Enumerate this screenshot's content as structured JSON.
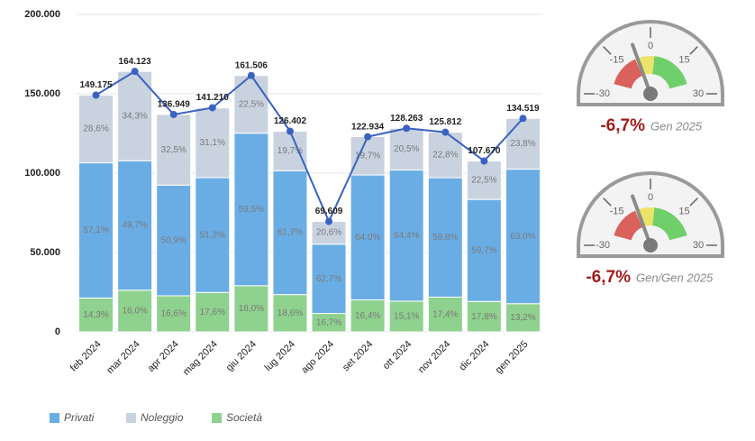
{
  "chart_data": {
    "type": "bar",
    "categories": [
      "feb 2024",
      "mar 2024",
      "apr 2024",
      "mag 2024",
      "giu 2024",
      "lug 2024",
      "ago 2024",
      "set 2024",
      "ott 2024",
      "nov 2024",
      "dic 2024",
      "gen 2025"
    ],
    "series": [
      {
        "name": "Privati",
        "color": "#6aade4",
        "values": [
          57.1,
          49.7,
          50.9,
          51.2,
          59.5,
          61.7,
          62.7,
          64.0,
          64.4,
          59.8,
          59.7,
          63.0
        ],
        "value_labels": [
          "57,1%",
          "49,7%",
          "50,9%",
          "51,2%",
          "59,5%",
          "61,7%",
          "62,7%",
          "64,0%",
          "64,4%",
          "59,8%",
          "59,7%",
          "63,0%"
        ]
      },
      {
        "name": "Noleggio",
        "color": "#c9d3e0",
        "values": [
          28.6,
          34.3,
          32.5,
          31.1,
          22.5,
          19.7,
          20.6,
          19.7,
          20.5,
          22.8,
          22.5,
          23.8
        ],
        "value_labels": [
          "28,6%",
          "34,3%",
          "32,5%",
          "31,1%",
          "22,5%",
          "19,7%",
          "20,6%",
          "19,7%",
          "20,5%",
          "22,8%",
          "22,5%",
          "23,8%"
        ]
      },
      {
        "name": "Società",
        "color": "#8fd18e",
        "values": [
          14.3,
          16.0,
          16.6,
          17.6,
          18.0,
          18.6,
          16.7,
          16.4,
          15.1,
          17.4,
          17.8,
          13.2
        ],
        "value_labels": [
          "14,3%",
          "16,0%",
          "16,6%",
          "17,6%",
          "18,0%",
          "18,6%",
          "16,7%",
          "16,4%",
          "15,1%",
          "17,4%",
          "17,8%",
          "13,2%"
        ]
      }
    ],
    "line": {
      "type": "line",
      "color": "#3a62c0",
      "values": [
        149175,
        164123,
        136949,
        141210,
        161506,
        126402,
        69609,
        122934,
        128263,
        125812,
        107670,
        134519
      ],
      "value_labels": [
        "149.175",
        "164.123",
        "136.949",
        "141.210",
        "161.506",
        "126.402",
        "69.609",
        "122.934",
        "128.263",
        "125.812",
        "107.670",
        "134.519"
      ]
    },
    "ylim": [
      0,
      200000
    ],
    "yticks": [
      0,
      {
        "value": 50000,
        "label": "50.000"
      },
      {
        "value": 100000,
        "label": "100.000"
      },
      {
        "value": 150000,
        "label": "150.000"
      },
      {
        "value": 200000,
        "label": "200.000"
      }
    ],
    "grid": true
  },
  "gauges": [
    {
      "type": "gauge",
      "value": -6.7,
      "value_label": "-6,7%",
      "caption": "Gen 2025",
      "range": [
        -30,
        30
      ],
      "ticks": [
        -30,
        -15,
        0,
        15,
        30
      ],
      "bands": [
        {
          "from": -25,
          "to": -8,
          "color": "#d9625c"
        },
        {
          "from": -8,
          "to": 2,
          "color": "#ece36a"
        },
        {
          "from": 2,
          "to": 25,
          "color": "#6fcf6a"
        }
      ]
    },
    {
      "type": "gauge",
      "value": -6.7,
      "value_label": "-6,7%",
      "caption": "Gen/Gen 2025",
      "range": [
        -30,
        30
      ],
      "ticks": [
        -30,
        -15,
        0,
        15,
        30
      ],
      "bands": [
        {
          "from": -25,
          "to": -8,
          "color": "#d9625c"
        },
        {
          "from": -8,
          "to": 2,
          "color": "#ece36a"
        },
        {
          "from": 2,
          "to": 25,
          "color": "#6fcf6a"
        }
      ]
    }
  ]
}
